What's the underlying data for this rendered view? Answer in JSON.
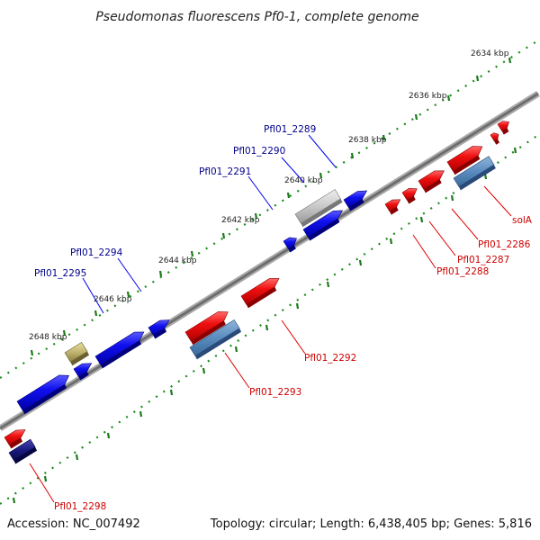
{
  "title": "Pseudomonas fluorescens Pf0-1, complete genome",
  "footer": {
    "accession": "Accession: NC_007492",
    "summary": "Topology: circular; Length: 6,438,405 bp; Genes: 5,816"
  },
  "ticks": [
    "2634 kbp",
    "2636 kbp",
    "2638 kbp",
    "2640 kbp",
    "2642 kbp",
    "2644 kbp",
    "2646 kbp",
    "2648 kbp"
  ],
  "genes_top": [
    "Pfl01_2289",
    "Pfl01_2290",
    "Pfl01_2291",
    "Pfl01_2294",
    "Pfl01_2295"
  ],
  "genes_bottom": [
    "solA",
    "Pfl01_2286",
    "Pfl01_2287",
    "Pfl01_2288",
    "Pfl01_2292",
    "Pfl01_2293",
    "Pfl01_2298"
  ],
  "colors": {
    "forward": "#0000ee",
    "reverse": "#ee0000",
    "backbone": "#808080",
    "tick": "#1a8a1a",
    "top_label": "#00008b",
    "bottom_label": "#cc0000"
  }
}
